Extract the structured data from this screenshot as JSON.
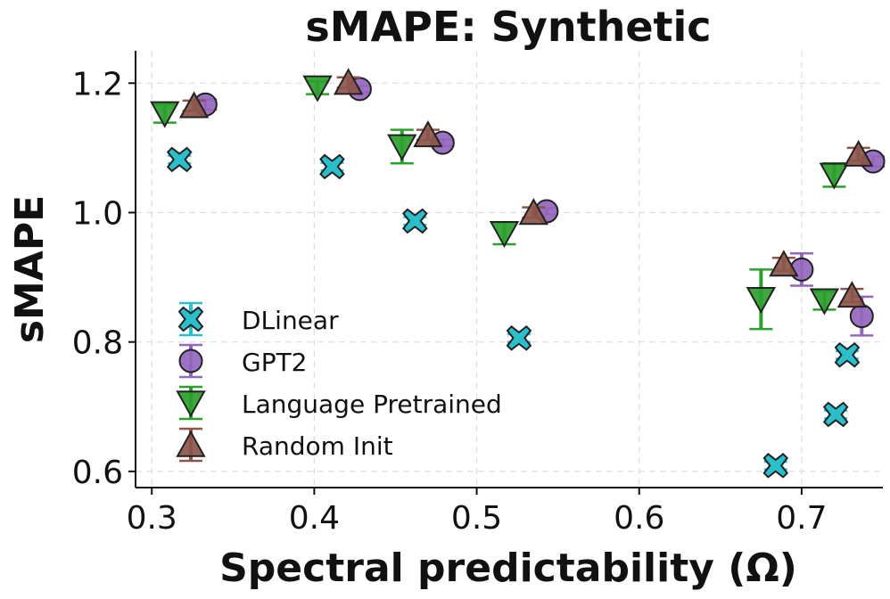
{
  "chart_data": {
    "type": "scatter",
    "title": "sMAPE: Synthetic",
    "xlabel": "Spectral predictability (Ω)",
    "ylabel": "sMAPE",
    "xlim": [
      0.29,
      0.75
    ],
    "ylim": [
      0.575,
      1.25
    ],
    "xticks": [
      0.3,
      0.4,
      0.5,
      0.6,
      0.7
    ],
    "xtick_labels": [
      "0.3",
      "0.4",
      "0.5",
      "0.6",
      "0.7"
    ],
    "yticks": [
      0.6,
      0.8,
      1.0,
      1.2
    ],
    "ytick_labels": [
      "0.6",
      "0.8",
      "1.0",
      "1.2"
    ],
    "grid": true,
    "legend_position": "lower-left",
    "series": [
      {
        "name": "DLinear",
        "marker": "x",
        "color": "#2bbfcc",
        "points": [
          {
            "x": 0.317,
            "y": 1.082,
            "err": 0.006
          },
          {
            "x": 0.411,
            "y": 1.071,
            "err": 0.006
          },
          {
            "x": 0.462,
            "y": 0.987,
            "err": 0.006
          },
          {
            "x": 0.526,
            "y": 0.806,
            "err": 0.006
          },
          {
            "x": 0.684,
            "y": 0.609,
            "err": 0.006
          },
          {
            "x": 0.721,
            "y": 0.688,
            "err": 0.006
          },
          {
            "x": 0.728,
            "y": 0.78,
            "err": 0.006
          }
        ]
      },
      {
        "name": "GPT2",
        "marker": "circle",
        "color": "#9467bd",
        "points": [
          {
            "x": 0.333,
            "y": 1.167,
            "err": 0.008
          },
          {
            "x": 0.428,
            "y": 1.191,
            "err": 0.005
          },
          {
            "x": 0.479,
            "y": 1.108,
            "err": 0.005
          },
          {
            "x": 0.543,
            "y": 1.002,
            "err": 0.005
          },
          {
            "x": 0.7,
            "y": 0.912,
            "err": 0.025
          },
          {
            "x": 0.737,
            "y": 0.84,
            "err": 0.03
          },
          {
            "x": 0.744,
            "y": 1.079,
            "err": 0.008
          }
        ]
      },
      {
        "name": "Language Pretrained",
        "marker": "triangle-down",
        "color": "#2ca02c",
        "points": [
          {
            "x": 0.308,
            "y": 1.153,
            "err": 0.014
          },
          {
            "x": 0.402,
            "y": 1.193,
            "err": 0.01
          },
          {
            "x": 0.454,
            "y": 1.102,
            "err": 0.026
          },
          {
            "x": 0.517,
            "y": 0.968,
            "err": 0.017
          },
          {
            "x": 0.675,
            "y": 0.866,
            "err": 0.046
          },
          {
            "x": 0.714,
            "y": 0.864,
            "err": 0.014
          },
          {
            "x": 0.72,
            "y": 1.058,
            "err": 0.018
          }
        ]
      },
      {
        "name": "Random Init",
        "marker": "triangle-up",
        "color": "#8c564b",
        "points": [
          {
            "x": 0.326,
            "y": 1.165,
            "err": 0.008
          },
          {
            "x": 0.421,
            "y": 1.201,
            "err": 0.008
          },
          {
            "x": 0.47,
            "y": 1.12,
            "err": 0.008
          },
          {
            "x": 0.535,
            "y": 1.0,
            "err": 0.008
          },
          {
            "x": 0.689,
            "y": 0.92,
            "err": 0.01
          },
          {
            "x": 0.731,
            "y": 0.872,
            "err": 0.01
          },
          {
            "x": 0.735,
            "y": 1.09,
            "err": 0.01
          }
        ]
      }
    ]
  }
}
